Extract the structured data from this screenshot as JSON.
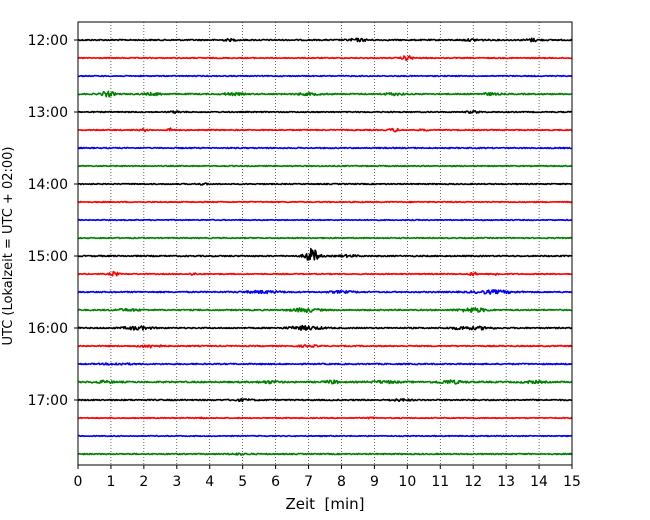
{
  "chart_data": {
    "type": "line",
    "title": "",
    "xlabel": "Zeit  [min]",
    "ylabel": "UTC (Lokalzeit = UTC + 02:00)",
    "xlim": [
      0,
      15
    ],
    "x_ticks": [
      "0",
      "1",
      "2",
      "3",
      "4",
      "5",
      "6",
      "7",
      "8",
      "9",
      "10",
      "11",
      "12",
      "13",
      "14",
      "15"
    ],
    "y_ticks": [
      "12:00",
      "13:00",
      "14:00",
      "15:00",
      "16:00",
      "17:00"
    ],
    "grid": "vertical dotted at each minute",
    "trace_interval_minutes": 15,
    "colors": [
      "#000000",
      "#ff0000",
      "#0000ff",
      "#008000"
    ],
    "series": [
      {
        "start": "12:00",
        "color": "#000000",
        "level": 0.6,
        "events": [
          {
            "t": 4.6,
            "amp": 0.8,
            "w": 0.2
          },
          {
            "t": 8.5,
            "amp": 1.2,
            "w": 0.3
          },
          {
            "t": 12.0,
            "amp": 0.8,
            "w": 0.3
          },
          {
            "t": 13.8,
            "amp": 1.3,
            "w": 0.2
          }
        ]
      },
      {
        "start": "12:15",
        "color": "#ff0000",
        "level": 0.5,
        "events": [
          {
            "t": 10.0,
            "amp": 2.4,
            "w": 0.15
          }
        ]
      },
      {
        "start": "12:30",
        "color": "#0000ff",
        "level": 0.5,
        "events": []
      },
      {
        "start": "12:45",
        "color": "#008000",
        "level": 0.6,
        "events": [
          {
            "t": 0.9,
            "amp": 2.5,
            "w": 0.2
          },
          {
            "t": 2.3,
            "amp": 1.0,
            "w": 0.3
          },
          {
            "t": 4.7,
            "amp": 1.0,
            "w": 0.3
          },
          {
            "t": 7.0,
            "amp": 0.9,
            "w": 0.4
          },
          {
            "t": 9.6,
            "amp": 1.0,
            "w": 0.3
          },
          {
            "t": 12.5,
            "amp": 0.9,
            "w": 0.3
          }
        ]
      },
      {
        "start": "13:00",
        "color": "#000000",
        "level": 0.5,
        "events": [
          {
            "t": 3.0,
            "amp": 0.8,
            "w": 0.2
          },
          {
            "t": 12.0,
            "amp": 1.0,
            "w": 0.2
          }
        ]
      },
      {
        "start": "13:15",
        "color": "#ff0000",
        "level": 0.5,
        "events": [
          {
            "t": 2.0,
            "amp": 1.2,
            "w": 0.1
          },
          {
            "t": 2.8,
            "amp": 1.5,
            "w": 0.1
          },
          {
            "t": 9.6,
            "amp": 1.5,
            "w": 0.15
          },
          {
            "t": 10.5,
            "amp": 0.9,
            "w": 0.1
          }
        ]
      },
      {
        "start": "13:30",
        "color": "#0000ff",
        "level": 0.55,
        "events": []
      },
      {
        "start": "13:45",
        "color": "#008000",
        "level": 0.5,
        "events": []
      },
      {
        "start": "14:00",
        "color": "#000000",
        "level": 0.5,
        "events": [
          {
            "t": 3.8,
            "amp": 0.6,
            "w": 0.2
          }
        ]
      },
      {
        "start": "14:15",
        "color": "#ff0000",
        "level": 0.5,
        "events": []
      },
      {
        "start": "14:30",
        "color": "#0000ff",
        "level": 0.45,
        "events": []
      },
      {
        "start": "14:45",
        "color": "#008000",
        "level": 0.5,
        "events": []
      },
      {
        "start": "15:00",
        "color": "#000000",
        "level": 0.6,
        "events": [
          {
            "t": 7.1,
            "amp": 7.0,
            "w": 0.2
          },
          {
            "t": 8.2,
            "amp": 0.8,
            "w": 0.3
          }
        ]
      },
      {
        "start": "15:15",
        "color": "#ff0000",
        "level": 0.5,
        "events": [
          {
            "t": 1.1,
            "amp": 2.2,
            "w": 0.12
          },
          {
            "t": 3.5,
            "amp": 1.2,
            "w": 0.1
          },
          {
            "t": 12.0,
            "amp": 1.5,
            "w": 0.12
          },
          {
            "t": 12.7,
            "amp": 1.0,
            "w": 0.12
          }
        ]
      },
      {
        "start": "15:30",
        "color": "#0000ff",
        "level": 0.6,
        "events": [
          {
            "t": 5.6,
            "amp": 1.0,
            "w": 0.6
          },
          {
            "t": 8.0,
            "amp": 0.8,
            "w": 0.4
          },
          {
            "t": 12.6,
            "amp": 1.5,
            "w": 0.6
          }
        ]
      },
      {
        "start": "15:45",
        "color": "#008000",
        "level": 0.6,
        "events": [
          {
            "t": 1.5,
            "amp": 0.9,
            "w": 0.4
          },
          {
            "t": 6.9,
            "amp": 1.8,
            "w": 0.4
          },
          {
            "t": 12.0,
            "amp": 2.0,
            "w": 0.4
          }
        ]
      },
      {
        "start": "16:00",
        "color": "#000000",
        "level": 0.6,
        "events": [
          {
            "t": 1.8,
            "amp": 1.6,
            "w": 0.4
          },
          {
            "t": 6.9,
            "amp": 1.8,
            "w": 0.5
          },
          {
            "t": 11.7,
            "amp": 1.2,
            "w": 0.4
          },
          {
            "t": 12.3,
            "amp": 1.0,
            "w": 0.3
          }
        ]
      },
      {
        "start": "16:15",
        "color": "#ff0000",
        "level": 0.55,
        "events": [
          {
            "t": 2.2,
            "amp": 1.5,
            "w": 0.3
          },
          {
            "t": 7.0,
            "amp": 0.8,
            "w": 0.3
          }
        ]
      },
      {
        "start": "16:30",
        "color": "#0000ff",
        "level": 0.6,
        "events": [
          {
            "t": 1.2,
            "amp": 0.7,
            "w": 0.4
          }
        ]
      },
      {
        "start": "16:45",
        "color": "#008000",
        "level": 0.7,
        "events": [
          {
            "t": 0.8,
            "amp": 1.0,
            "w": 0.3
          },
          {
            "t": 5.8,
            "amp": 1.0,
            "w": 0.3
          },
          {
            "t": 7.7,
            "amp": 1.5,
            "w": 0.2
          },
          {
            "t": 9.3,
            "amp": 1.0,
            "w": 0.4
          },
          {
            "t": 11.3,
            "amp": 1.5,
            "w": 0.4
          },
          {
            "t": 13.8,
            "amp": 1.0,
            "w": 0.3
          }
        ]
      },
      {
        "start": "17:00",
        "color": "#000000",
        "level": 0.6,
        "events": [
          {
            "t": 5.0,
            "amp": 0.8,
            "w": 0.3
          },
          {
            "t": 9.8,
            "amp": 0.8,
            "w": 0.3
          }
        ]
      },
      {
        "start": "17:15",
        "color": "#ff0000",
        "level": 0.45,
        "events": [
          {
            "t": 3.7,
            "amp": 0.7,
            "w": 0.1
          },
          {
            "t": 8.9,
            "amp": 0.7,
            "w": 0.1
          }
        ]
      },
      {
        "start": "17:30",
        "color": "#0000ff",
        "level": 0.45,
        "events": []
      },
      {
        "start": "17:45",
        "color": "#008000",
        "level": 0.55,
        "events": [
          {
            "t": 4.9,
            "amp": 0.6,
            "w": 0.3
          }
        ]
      }
    ]
  }
}
